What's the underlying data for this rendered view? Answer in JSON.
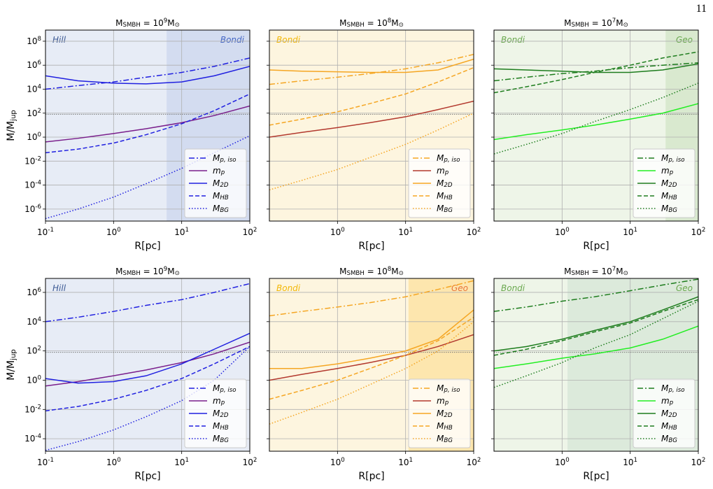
{
  "page_number": "11",
  "chart_data": [
    {
      "type": "line",
      "title": "M_{SMBH} = 10^{9}M_{⊙}",
      "xlabel": "R[pc]",
      "ylabel": "M/M_{jup}",
      "log_x": true,
      "log_y": true,
      "grid": true,
      "legend": "lower right",
      "xlim": [
        0.1,
        100
      ],
      "ylim": [
        1e-07,
        850000000.0
      ],
      "xticks": [
        {
          "value": 0.1,
          "label": "10^{-1}"
        },
        {
          "value": 1,
          "label": "10^{0}"
        },
        {
          "value": 10,
          "label": "10^{1}"
        },
        {
          "value": 100,
          "label": "10^{2}"
        }
      ],
      "yticks": [
        {
          "value": 1e-06,
          "label": "10^{-6}"
        },
        {
          "value": 0.0001,
          "label": "10^{-4}"
        },
        {
          "value": 0.01,
          "label": "10^{-2}"
        },
        {
          "value": 1,
          "label": "10^{0}"
        },
        {
          "value": 100,
          "label": "10^{2}"
        },
        {
          "value": 10000,
          "label": "10^{4}"
        },
        {
          "value": 1000000,
          "label": "10^{6}"
        },
        {
          "value": 100000000,
          "label": "10^{8}"
        }
      ],
      "hline": 80,
      "regions": [
        {
          "label": "Hill",
          "from": 0.1,
          "to": 6,
          "color": "#e7ecf6",
          "label_color": "#3d5a94"
        },
        {
          "label": "Bondi",
          "from": 6,
          "to": 100,
          "color": "#d3dcf0",
          "label_color": "#4466c4"
        }
      ],
      "x": [
        0.1,
        0.3,
        1,
        3,
        10,
        30,
        100
      ],
      "series": [
        {
          "name": "M_{p, iso}",
          "color": "#2020e0",
          "linestyle": "dashdot",
          "values": [
            10000.0,
            20000.0,
            40000.0,
            100000.0,
            250000.0,
            800000.0,
            4000000.0
          ]
        },
        {
          "name": "m_{p}",
          "color": "#7a1f8c",
          "linestyle": "solid",
          "values": [
            0.4,
            0.8,
            2,
            5,
            16,
            63,
            400
          ]
        },
        {
          "name": "M_{2D}",
          "color": "#2020e0",
          "linestyle": "solid",
          "values": [
            130000.0,
            50000.0,
            32000.0,
            28000.0,
            40000.0,
            130000.0,
            800000.0
          ]
        },
        {
          "name": "M_{HB}",
          "color": "#2020e0",
          "linestyle": "dashed",
          "values": [
            0.05,
            0.1,
            0.32,
            1.6,
            13,
            160,
            4000
          ]
        },
        {
          "name": "M_{BG}",
          "color": "#2020e0",
          "linestyle": "dotted",
          "values": [
            1.6e-07,
            1e-06,
            1e-05,
            0.00013,
            0.0025,
            0.05,
            1.3
          ]
        }
      ]
    },
    {
      "type": "line",
      "title": "M_{SMBH} = 10^{8}M_{⊙}",
      "xlabel": "R[pc]",
      "log_x": true,
      "log_y": true,
      "grid": true,
      "legend": "lower right",
      "xlim": [
        0.1,
        100
      ],
      "ylim": [
        1e-07,
        850000000.0
      ],
      "xticks": [
        {
          "value": 1,
          "label": "10^{0}"
        },
        {
          "value": 10,
          "label": "10^{1}"
        },
        {
          "value": 100,
          "label": "10^{2}"
        }
      ],
      "yticks": [
        1e-06,
        0.0001,
        0.01,
        1,
        100,
        10000,
        1000000,
        100000000
      ],
      "hline": 80,
      "regions": [
        {
          "label": "Bondi",
          "from": 0.1,
          "to": 100,
          "color": "#fdf5df",
          "label_color": "#f2b705"
        }
      ],
      "x": [
        0.1,
        0.3,
        1,
        3,
        10,
        30,
        100
      ],
      "series": [
        {
          "name": "M_{p, iso}",
          "color": "#f5a623",
          "linestyle": "dashdot",
          "values": [
            25000.0,
            50000.0,
            100000.0,
            200000.0,
            500000.0,
            1600000.0,
            8000000.0
          ]
        },
        {
          "name": "m_{p}",
          "color": "#b3392e",
          "linestyle": "solid",
          "values": [
            1,
            2.5,
            6.3,
            16,
            50,
            200,
            1000
          ]
        },
        {
          "name": "M_{2D}",
          "color": "#f5a623",
          "linestyle": "solid",
          "values": [
            400000.0,
            320000.0,
            280000.0,
            250000.0,
            250000.0,
            400000.0,
            3200000.0
          ]
        },
        {
          "name": "M_{HB}",
          "color": "#f5a623",
          "linestyle": "dashed",
          "values": [
            10,
            32,
            130,
            630,
            4000,
            40000.0,
            630000.0
          ]
        },
        {
          "name": "M_{BG}",
          "color": "#f5a623",
          "linestyle": "dotted",
          "values": [
            4e-05,
            0.00025,
            0.002,
            0.02,
            0.25,
            4,
            100
          ]
        }
      ]
    },
    {
      "type": "line",
      "title": "M_{SMBH} = 10^{7}M_{⊙}",
      "xlabel": "R[pc]",
      "log_x": true,
      "log_y": true,
      "grid": true,
      "legend": "lower right",
      "xlim": [
        0.1,
        100
      ],
      "ylim": [
        1e-07,
        850000000.0
      ],
      "xticks": [
        {
          "value": 1,
          "label": "10^{0}"
        },
        {
          "value": 10,
          "label": "10^{1}"
        },
        {
          "value": 100,
          "label": "10^{2}"
        }
      ],
      "yticks": [
        1e-06,
        0.0001,
        0.01,
        1,
        100,
        10000,
        1000000,
        100000000
      ],
      "hline": 80,
      "regions": [
        {
          "label": "Bondi",
          "from": 0.1,
          "to": 33,
          "color": "#eef5e8",
          "label_color": "#6aa84f"
        },
        {
          "label": "Geo",
          "from": 33,
          "to": 100,
          "color": "#d9e9cf",
          "label_color": "#6aa84f"
        }
      ],
      "x": [
        0.1,
        0.3,
        1,
        3,
        10,
        30,
        100
      ],
      "series": [
        {
          "name": "M_{p, iso}",
          "color": "#1e7d1e",
          "linestyle": "dashdot",
          "values": [
            50000.0,
            100000.0,
            200000.0,
            320000.0,
            630000.0,
            1000000.0,
            1600000.0
          ]
        },
        {
          "name": "m_{p}",
          "color": "#22ee22",
          "linestyle": "solid",
          "values": [
            0.63,
            1.6,
            4,
            10,
            32,
            100,
            630
          ]
        },
        {
          "name": "M_{2D}",
          "color": "#1e7d1e",
          "linestyle": "solid",
          "values": [
            500000.0,
            400000.0,
            320000.0,
            250000.0,
            250000.0,
            400000.0,
            1300000.0
          ]
        },
        {
          "name": "M_{HB}",
          "color": "#1e7d1e",
          "linestyle": "dashed",
          "values": [
            5000,
            16000.0,
            63000.0,
            250000.0,
            1000000.0,
            4000000.0,
            13000000.0
          ]
        },
        {
          "name": "M_{BG}",
          "color": "#1e7d1e",
          "linestyle": "dotted",
          "values": [
            0.04,
            0.25,
            2,
            20,
            200,
            2000,
            32000.0
          ]
        }
      ]
    },
    {
      "type": "line",
      "title": "M_{SMBH} = 10^{9}M_{⊙}",
      "xlabel": "R[pc]",
      "ylabel": "M/M_{jup}",
      "log_x": true,
      "log_y": true,
      "grid": true,
      "legend": "lower right",
      "xlim": [
        0.1,
        100
      ],
      "ylim": [
        1.4e-05,
        9000000.0
      ],
      "xticks": [
        {
          "value": 0.1,
          "label": "10^{-1}"
        },
        {
          "value": 1,
          "label": "10^{0}"
        },
        {
          "value": 10,
          "label": "10^{1}"
        },
        {
          "value": 100,
          "label": "10^{2}"
        }
      ],
      "yticks": [
        {
          "value": 0.0001,
          "label": "10^{-4}"
        },
        {
          "value": 0.01,
          "label": "10^{-2}"
        },
        {
          "value": 1,
          "label": "10^{0}"
        },
        {
          "value": 100,
          "label": "10^{2}"
        },
        {
          "value": 10000,
          "label": "10^{4}"
        },
        {
          "value": 1000000,
          "label": "10^{6}"
        }
      ],
      "hline": 80,
      "regions": [
        {
          "label": "Hill",
          "from": 0.1,
          "to": 100,
          "color": "#e7ecf6",
          "label_color": "#3d5a94"
        }
      ],
      "x": [
        0.1,
        0.3,
        1,
        3,
        10,
        30,
        100
      ],
      "series": [
        {
          "name": "M_{p, iso}",
          "color": "#2020e0",
          "linestyle": "dashdot",
          "values": [
            10000.0,
            20000.0,
            50000.0,
            130000.0,
            320000.0,
            1000000.0,
            4000000.0
          ]
        },
        {
          "name": "m_{p}",
          "color": "#7a1f8c",
          "linestyle": "solid",
          "values": [
            0.4,
            0.8,
            2,
            5,
            16,
            63,
            400
          ]
        },
        {
          "name": "M_{2D}",
          "color": "#2020e0",
          "linestyle": "solid",
          "values": [
            1.3,
            0.63,
            0.8,
            2,
            13,
            130,
            1600
          ]
        },
        {
          "name": "M_{HB}",
          "color": "#2020e0",
          "linestyle": "dashed",
          "values": [
            0.008,
            0.016,
            0.05,
            0.2,
            1.3,
            13,
            200
          ]
        },
        {
          "name": "M_{BG}",
          "color": "#2020e0",
          "linestyle": "dotted",
          "values": [
            1.6e-05,
            6.3e-05,
            0.0004,
            0.0032,
            0.04,
            1,
            200
          ]
        }
      ]
    },
    {
      "type": "line",
      "title": "M_{SMBH} = 10^{8}M_{⊙}",
      "xlabel": "R[pc]",
      "log_x": true,
      "log_y": true,
      "grid": true,
      "legend": "lower right",
      "xlim": [
        0.1,
        100
      ],
      "ylim": [
        1.4e-05,
        9000000.0
      ],
      "xticks": [
        {
          "value": 1,
          "label": "10^{0}"
        },
        {
          "value": 10,
          "label": "10^{1}"
        },
        {
          "value": 100,
          "label": "10^{2}"
        }
      ],
      "yticks": [
        0.0001,
        0.01,
        1,
        100,
        10000,
        1000000
      ],
      "hline": 80,
      "regions": [
        {
          "label": "Bondi",
          "from": 0.1,
          "to": 11,
          "color": "#fdf5df",
          "label_color": "#f2b705"
        },
        {
          "label": "Geo",
          "from": 11,
          "to": 100,
          "color": "#fde6ae",
          "label_color": "#e8743b"
        }
      ],
      "x": [
        0.1,
        0.3,
        1,
        3,
        10,
        30,
        100
      ],
      "series": [
        {
          "name": "M_{p, iso}",
          "color": "#f5a623",
          "linestyle": "dashdot",
          "values": [
            25000.0,
            50000.0,
            100000.0,
            200000.0,
            500000.0,
            1600000.0,
            6300000.0
          ]
        },
        {
          "name": "m_{p}",
          "color": "#b3392e",
          "linestyle": "solid",
          "values": [
            1,
            2.5,
            6.3,
            16,
            50,
            200,
            1300
          ]
        },
        {
          "name": "M_{2D}",
          "color": "#f5a623",
          "linestyle": "solid",
          "values": [
            6.3,
            6.3,
            13,
            32,
            100,
            630,
            63000.0
          ]
        },
        {
          "name": "M_{HB}",
          "color": "#f5a623",
          "linestyle": "dashed",
          "values": [
            0.05,
            0.2,
            1,
            6.3,
            50,
            500,
            20000.0
          ]
        },
        {
          "name": "M_{BG}",
          "color": "#f5a623",
          "linestyle": "dotted",
          "values": [
            0.001,
            0.0063,
            0.05,
            0.5,
            6.3,
            100,
            10000.0
          ]
        }
      ]
    },
    {
      "type": "line",
      "title": "M_{SMBH} = 10^{7}M_{⊙}",
      "xlabel": "R[pc]",
      "log_x": true,
      "log_y": true,
      "grid": true,
      "legend": "lower right",
      "xlim": [
        0.1,
        100
      ],
      "ylim": [
        1.4e-05,
        9000000.0
      ],
      "xticks": [
        {
          "value": 1,
          "label": "10^{0}"
        },
        {
          "value": 10,
          "label": "10^{1}"
        },
        {
          "value": 100,
          "label": "10^{2}"
        }
      ],
      "yticks": [
        0.0001,
        0.01,
        1,
        100,
        10000,
        1000000
      ],
      "hline": 80,
      "regions": [
        {
          "label": "Bondi",
          "from": 0.1,
          "to": 1.2,
          "color": "#eef5e8",
          "label_color": "#6aa84f"
        },
        {
          "label": "Geo",
          "from": 1.2,
          "to": 100,
          "color": "#dceadb",
          "label_color": "#6aa84f"
        }
      ],
      "x": [
        0.1,
        0.3,
        1,
        3,
        10,
        30,
        100
      ],
      "series": [
        {
          "name": "M_{p, iso}",
          "color": "#1e7d1e",
          "linestyle": "dashdot",
          "values": [
            50000.0,
            100000.0,
            250000.0,
            500000.0,
            1300000.0,
            3200000.0,
            8000000.0
          ]
        },
        {
          "name": "m_{p}",
          "color": "#22ee22",
          "linestyle": "solid",
          "values": [
            6.3,
            13,
            32,
            63,
            160,
            630,
            5000
          ]
        },
        {
          "name": "M_{2D}",
          "color": "#1e7d1e",
          "linestyle": "solid",
          "values": [
            100,
            200,
            630,
            2500,
            10000.0,
            63000.0,
            500000.0
          ]
        },
        {
          "name": "M_{HB}",
          "color": "#1e7d1e",
          "linestyle": "dashed",
          "values": [
            50,
            130,
            500,
            2000,
            8000,
            50000.0,
            320000.0
          ]
        },
        {
          "name": "M_{BG}",
          "color": "#1e7d1e",
          "linestyle": "dotted",
          "values": [
            0.32,
            2,
            16,
            160,
            1300,
            16000.0,
            250000.0
          ]
        }
      ]
    }
  ]
}
